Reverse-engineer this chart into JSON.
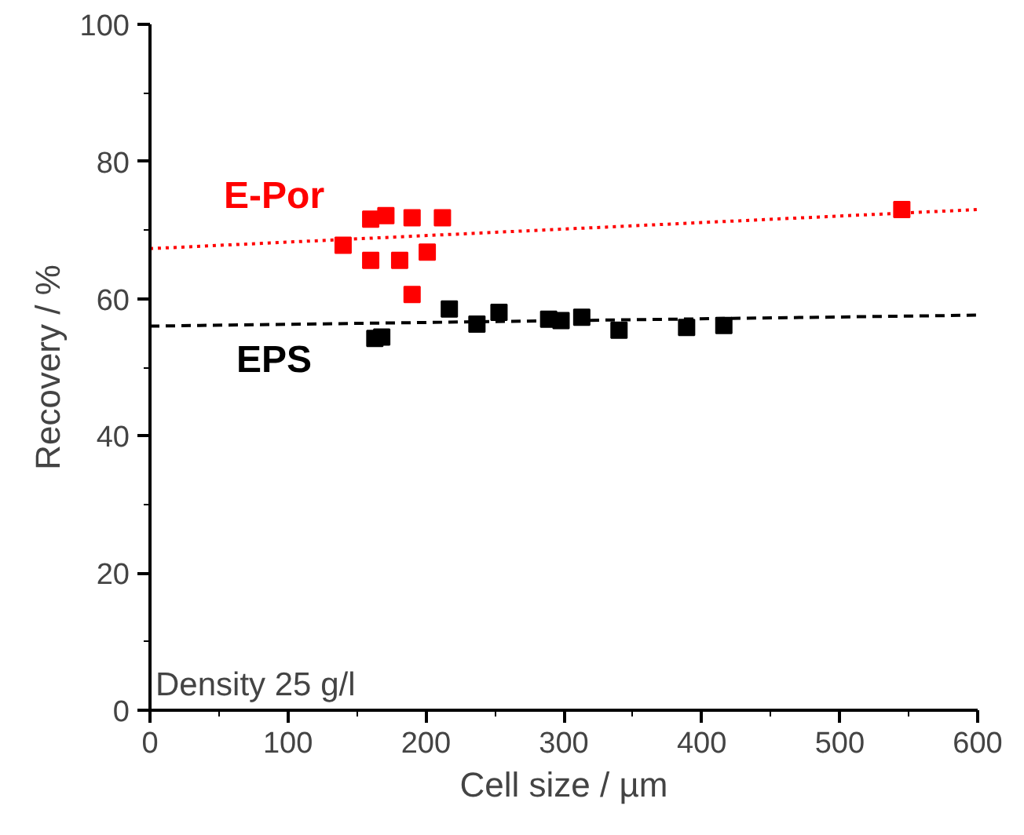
{
  "chart_data": {
    "type": "scatter",
    "xlabel": "Cell size / µm",
    "ylabel": "Recovery / %",
    "xlim": [
      0,
      600
    ],
    "ylim": [
      0,
      100
    ],
    "xticks": [
      0,
      100,
      200,
      300,
      400,
      500,
      600
    ],
    "yticks": [
      0,
      20,
      40,
      60,
      80,
      100
    ],
    "grid": false,
    "annotations": [
      "Density 25 g/l"
    ],
    "series": [
      {
        "name": "E-Por",
        "marker": "square",
        "color": "#ff0000",
        "x": [
          140,
          160,
          171,
          190,
          212,
          160,
          181,
          201,
          190,
          545
        ],
        "values": [
          67.8,
          71.6,
          72.1,
          71.8,
          71.8,
          65.6,
          65.6,
          66.8,
          60.6,
          73
        ]
      },
      {
        "name": "EPS",
        "marker": "square",
        "color": "#000000",
        "x": [
          163,
          168,
          217,
          237,
          253,
          289,
          298,
          313,
          340,
          389,
          416
        ],
        "values": [
          54.2,
          54.4,
          58.5,
          56.3,
          58,
          57,
          56.8,
          57.3,
          55.4,
          55.8,
          56.1
        ]
      },
      {
        "type": "line",
        "marker": "none",
        "line_style": "dotted",
        "color": "#ff0000",
        "x": [
          0,
          600
        ],
        "values": [
          67.3,
          73
        ]
      },
      {
        "type": "line",
        "marker": "none",
        "line_style": "dashed",
        "color": "#000000",
        "x": [
          0,
          600
        ],
        "values": [
          56,
          57.6
        ]
      }
    ]
  }
}
